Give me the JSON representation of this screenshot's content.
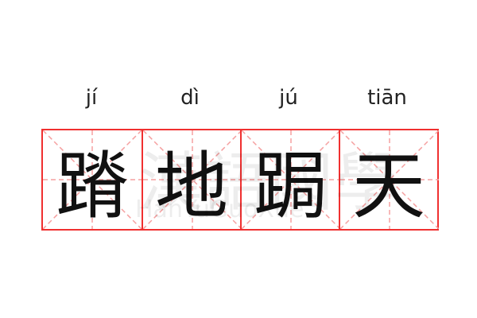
{
  "watermark": {
    "chinese": "漢語國學",
    "latin": "HanYuGuoXue"
  },
  "colors": {
    "grid_border": "#f03030",
    "guide_lines": "#f5a0a0",
    "text": "#111111"
  },
  "cells": [
    {
      "pinyin": "jí",
      "char": "蹐"
    },
    {
      "pinyin": "dì",
      "char": "地"
    },
    {
      "pinyin": "jú",
      "char": "跼"
    },
    {
      "pinyin": "tiān",
      "char": "天"
    }
  ]
}
